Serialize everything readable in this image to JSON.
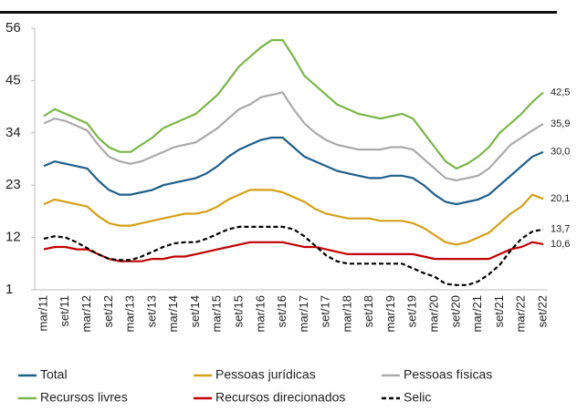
{
  "chart_data": {
    "type": "line",
    "categories": [
      "mar/11",
      null,
      "set/11",
      null,
      "mar/12",
      null,
      "set/12",
      null,
      "mar/13",
      null,
      "set/13",
      null,
      "mar/14",
      null,
      "set/14",
      null,
      "mar/15",
      null,
      "set/15",
      null,
      "mar/16",
      null,
      "set/16",
      null,
      "mar/17",
      null,
      "set/17",
      null,
      "mar/18",
      null,
      "set/18",
      null,
      "mar/19",
      null,
      "set/19",
      null,
      "mar/20",
      null,
      "set/20",
      null,
      "mar/21",
      null,
      "set/21",
      null,
      "mar/22",
      null,
      "set/22"
    ],
    "ylim": [
      1,
      56
    ],
    "yticks": [
      1,
      12,
      23,
      34,
      45,
      56
    ],
    "grid": false,
    "legend": "bottom",
    "series": [
      {
        "name": "Total",
        "color": "#1f5f8b",
        "style": "solid",
        "values": [
          27,
          28,
          27.5,
          27,
          26.5,
          24,
          22,
          21,
          21,
          21.5,
          22,
          23,
          23.5,
          24,
          24.5,
          25.5,
          27,
          29,
          30.5,
          31.5,
          32.5,
          33,
          33,
          31,
          29,
          28,
          27,
          26,
          25.5,
          25,
          24.5,
          24.5,
          25,
          25,
          24.5,
          23,
          21,
          19.5,
          19,
          19.5,
          20,
          21,
          23,
          25,
          27,
          29,
          30.0
        ],
        "value_labels": [
          null,
          null,
          null,
          null,
          null,
          null,
          null,
          null,
          null,
          null,
          null,
          null,
          null,
          null,
          null,
          null,
          null,
          null,
          null,
          null,
          null,
          null,
          null,
          null,
          null,
          null,
          null,
          null,
          null,
          null,
          null,
          null,
          null,
          null,
          null,
          null,
          null,
          null,
          null,
          null,
          null,
          null,
          null,
          null,
          null,
          null,
          "30,0"
        ]
      },
      {
        "name": "Pessoas jurídicas",
        "color": "#d4a017",
        "style": "solid",
        "values": [
          19,
          20,
          19.5,
          19,
          18.5,
          16.5,
          15,
          14.5,
          14.5,
          15,
          15.5,
          16,
          16.5,
          17,
          17,
          17.5,
          18.5,
          20,
          21,
          22,
          22,
          22,
          21.5,
          20.5,
          19.5,
          18,
          17,
          16.5,
          16,
          16,
          16,
          15.5,
          15.5,
          15.5,
          15,
          14,
          12.5,
          11,
          10.5,
          11,
          12,
          13,
          15,
          17,
          18.5,
          21,
          20.1
        ],
        "value_labels": [
          null,
          null,
          null,
          null,
          null,
          null,
          null,
          null,
          null,
          null,
          null,
          null,
          null,
          null,
          null,
          null,
          null,
          null,
          null,
          null,
          null,
          null,
          null,
          null,
          null,
          null,
          null,
          null,
          null,
          null,
          null,
          null,
          null,
          null,
          null,
          null,
          null,
          null,
          null,
          null,
          null,
          null,
          null,
          null,
          null,
          null,
          "20,1"
        ]
      },
      {
        "name": "Pessoas físicas",
        "color": "#aaaaaa",
        "style": "solid",
        "values": [
          36,
          37,
          36.5,
          35.5,
          34.5,
          31.5,
          29,
          28,
          27.5,
          28,
          29,
          30,
          31,
          31.5,
          32,
          33.5,
          35,
          37,
          39,
          40,
          41.5,
          42,
          42.5,
          39,
          36,
          34,
          32.5,
          31.5,
          31,
          30.5,
          30.5,
          30.5,
          31,
          31,
          30.5,
          28.5,
          26.5,
          24.5,
          24,
          24.5,
          25,
          26.5,
          29,
          31.5,
          33,
          34.5,
          35.9
        ],
        "value_labels": [
          null,
          null,
          null,
          null,
          null,
          null,
          null,
          null,
          null,
          null,
          null,
          null,
          null,
          null,
          null,
          null,
          null,
          null,
          null,
          null,
          null,
          null,
          null,
          null,
          null,
          null,
          null,
          null,
          null,
          null,
          null,
          null,
          null,
          null,
          null,
          null,
          null,
          null,
          null,
          null,
          null,
          null,
          null,
          null,
          null,
          null,
          "35,9"
        ]
      },
      {
        "name": "Recursos livres",
        "color": "#7ab648",
        "style": "solid",
        "values": [
          37.5,
          39,
          38,
          37,
          36,
          33,
          31,
          30,
          30,
          31.5,
          33,
          35,
          36,
          37,
          38,
          40,
          42,
          45,
          48,
          50,
          52,
          53.5,
          53.5,
          50,
          46,
          44,
          42,
          40,
          39,
          38,
          37.5,
          37,
          37.5,
          38,
          37,
          34,
          31,
          28,
          26.5,
          27.5,
          29,
          31,
          34,
          36,
          38,
          40.5,
          42.5
        ],
        "value_labels": [
          null,
          null,
          null,
          null,
          null,
          null,
          null,
          null,
          null,
          null,
          null,
          null,
          null,
          null,
          null,
          null,
          null,
          null,
          null,
          null,
          null,
          null,
          null,
          null,
          null,
          null,
          null,
          null,
          null,
          null,
          null,
          null,
          null,
          null,
          null,
          null,
          null,
          null,
          null,
          null,
          null,
          null,
          null,
          null,
          null,
          null,
          "42,5"
        ]
      },
      {
        "name": "Recursos direcionados",
        "color": "#c00000",
        "style": "solid",
        "values": [
          9.5,
          10,
          10,
          9.5,
          9.5,
          8.5,
          7.5,
          7,
          7,
          7,
          7.5,
          7.5,
          8,
          8,
          8.5,
          9,
          9.5,
          10,
          10.5,
          11,
          11,
          11,
          11,
          10.5,
          10,
          10,
          9.5,
          9,
          8.5,
          8.5,
          8.5,
          8.5,
          8.5,
          8.5,
          8.5,
          8,
          7.5,
          7.5,
          7.5,
          7.5,
          7.5,
          7.5,
          8.5,
          9.5,
          10,
          11,
          10.6
        ],
        "value_labels": [
          null,
          null,
          null,
          null,
          null,
          null,
          null,
          null,
          null,
          null,
          null,
          null,
          null,
          null,
          null,
          null,
          null,
          null,
          null,
          null,
          null,
          null,
          null,
          null,
          null,
          null,
          null,
          null,
          null,
          null,
          null,
          null,
          null,
          null,
          null,
          null,
          null,
          null,
          null,
          null,
          null,
          null,
          null,
          null,
          null,
          null,
          "10,6"
        ]
      },
      {
        "name": "Selic",
        "color": "#000000",
        "style": "dashed",
        "values": [
          11.75,
          12.25,
          12,
          11,
          9.75,
          8.5,
          7.5,
          7.25,
          7.25,
          8,
          9,
          10,
          10.75,
          11,
          11,
          11.75,
          12.75,
          13.75,
          14.25,
          14.25,
          14.25,
          14.25,
          14.25,
          13.75,
          12.25,
          10.25,
          8.25,
          7,
          6.5,
          6.5,
          6.5,
          6.5,
          6.5,
          6.5,
          5.5,
          4.5,
          3.75,
          2.25,
          2,
          2,
          2.75,
          4.25,
          6.25,
          9.25,
          11.75,
          13.25,
          13.7
        ],
        "value_labels": [
          null,
          null,
          null,
          null,
          null,
          null,
          null,
          null,
          null,
          null,
          null,
          null,
          null,
          null,
          null,
          null,
          null,
          null,
          null,
          null,
          null,
          null,
          null,
          null,
          null,
          null,
          null,
          null,
          null,
          null,
          null,
          null,
          null,
          null,
          null,
          null,
          null,
          null,
          null,
          null,
          null,
          null,
          null,
          null,
          null,
          null,
          "13,7"
        ]
      }
    ]
  }
}
